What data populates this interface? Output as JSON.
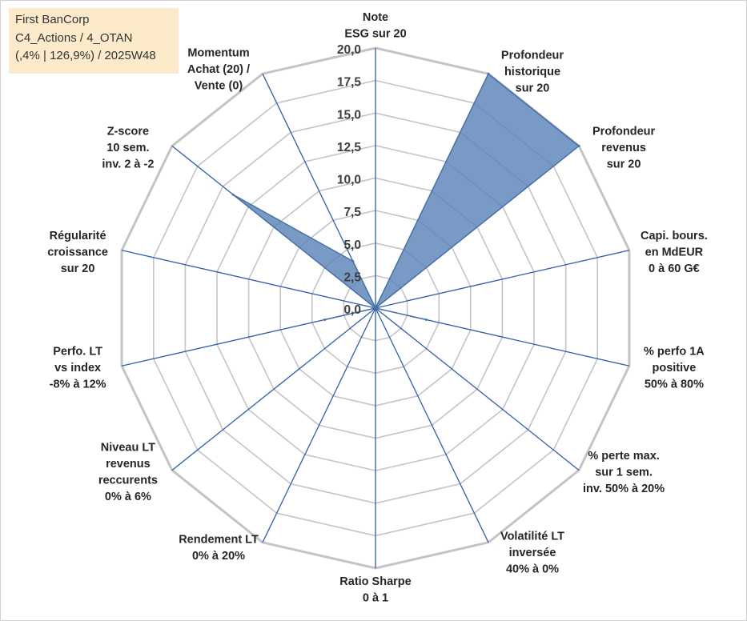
{
  "info": {
    "company": "First BanCorp",
    "category": "C4_Actions / 4_OTAN",
    "stats": "(,4% | 126,9%) / 2025W48"
  },
  "chart_data": {
    "type": "radar",
    "title": "",
    "rmin": 0,
    "rmax": 20,
    "step": 2.5,
    "tick_labels": [
      "0,0",
      "2,5",
      "5,0",
      "7,5",
      "10,0",
      "12,5",
      "15,0",
      "17,5",
      "20,0"
    ],
    "axes": [
      {
        "label": [
          "Note",
          "ESG sur 20"
        ],
        "value": 0
      },
      {
        "label": [
          "Profondeur",
          "historique",
          "sur 20"
        ],
        "value": 20
      },
      {
        "label": [
          "Profondeur",
          "revenus",
          "sur 20"
        ],
        "value": 20
      },
      {
        "label": [
          "Capi. bours.",
          "en MdEUR",
          "0 à 60 G€"
        ],
        "value": 0
      },
      {
        "label": [
          "% perfo 1A",
          "positive",
          "50% à 80%"
        ],
        "value": 4
      },
      {
        "label": [
          "% perte max.",
          "sur 1 sem.",
          "inv. 50% à 20%"
        ],
        "value": 0
      },
      {
        "label": [
          "Volatilité LT",
          "inversée",
          "40% à 0%"
        ],
        "value": 0
      },
      {
        "label": [
          "Ratio Sharpe",
          "0 à 1"
        ],
        "value": 0
      },
      {
        "label": [
          "Rendement LT",
          "0% à 20%"
        ],
        "value": 0
      },
      {
        "label": [
          "Niveau LT",
          "revenus",
          "reccurents",
          "0% à 6%"
        ],
        "value": 0
      },
      {
        "label": [
          "Perfo. LT",
          "vs index",
          "-8% à 12%"
        ],
        "value": 4
      },
      {
        "label": [
          "Régularité",
          "croissance",
          "sur 20"
        ],
        "value": 0
      },
      {
        "label": [
          "Z-score",
          "10 sem.",
          "inv. 2 à -2"
        ],
        "value": 14
      },
      {
        "label": [
          "Momentum",
          "Achat (20) /",
          "Vente (0)"
        ],
        "value": 4
      }
    ],
    "colors": {
      "fill": "#5b84b8",
      "stroke": "#4a72a8",
      "spoke": "#2f5fa8",
      "ring": "#c4c4c4"
    }
  }
}
